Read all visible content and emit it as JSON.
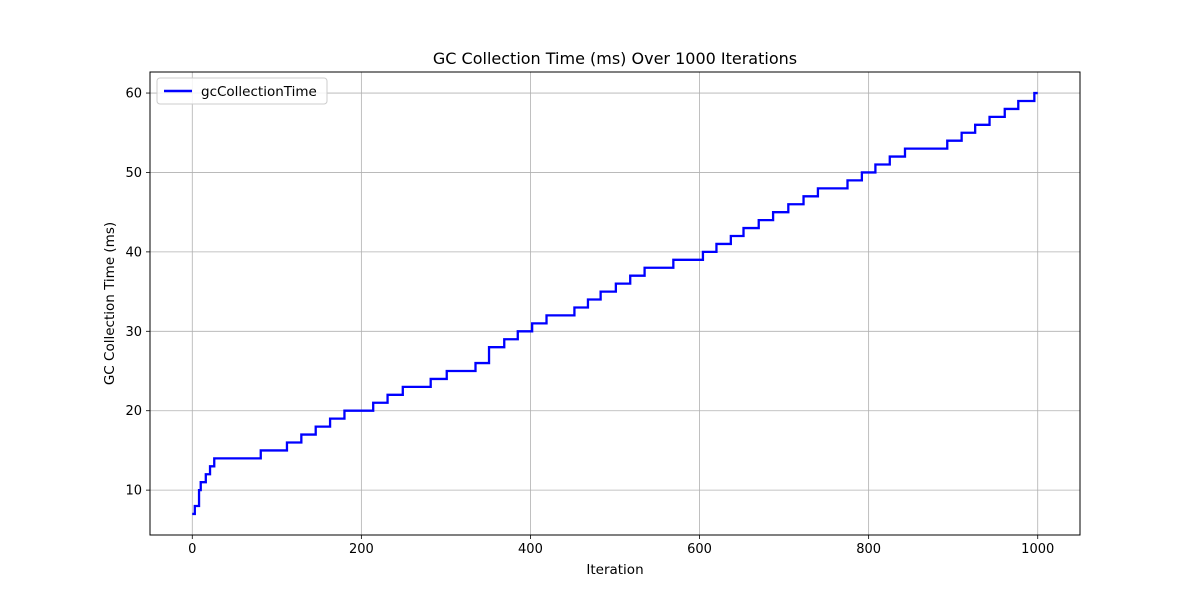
{
  "chart_data": {
    "type": "line",
    "title": "GC Collection Time (ms) Over 1000 Iterations",
    "xlabel": "Iteration",
    "ylabel": "GC Collection Time (ms)",
    "xlim": [
      -50,
      1050
    ],
    "ylim": [
      4.35,
      62.65
    ],
    "xticks": [
      0,
      200,
      400,
      600,
      800,
      1000
    ],
    "yticks": [
      10,
      20,
      30,
      40,
      50,
      60
    ],
    "grid": true,
    "legend": {
      "placement": "upper-left"
    },
    "series": [
      {
        "name": "gcCollectionTime",
        "color": "#0000ff",
        "x": [
          0,
          3,
          3,
          8,
          8,
          10,
          10,
          16,
          16,
          21,
          21,
          26,
          26,
          36,
          36,
          41,
          41,
          51,
          51,
          81,
          81,
          112,
          112,
          129,
          129,
          146,
          146,
          163,
          163,
          180,
          180,
          214,
          214,
          231,
          231,
          249,
          249,
          282,
          282,
          301,
          301,
          335,
          335,
          351,
          351,
          369,
          369,
          385,
          385,
          402,
          402,
          419,
          419,
          452,
          452,
          468,
          468,
          483,
          483,
          501,
          501,
          518,
          518,
          535,
          535,
          569,
          569,
          604,
          604,
          620,
          620,
          637,
          637,
          652,
          652,
          670,
          670,
          687,
          687,
          705,
          705,
          723,
          723,
          740,
          740,
          775,
          775,
          792,
          792,
          808,
          808,
          825,
          825,
          843,
          843,
          893,
          893,
          910,
          910,
          926,
          926,
          943,
          943,
          961,
          961,
          977,
          977,
          996,
          996,
          1000
        ],
        "y": [
          7,
          7,
          8,
          8,
          10,
          10,
          11,
          11,
          12,
          12,
          13,
          13,
          14,
          14,
          14,
          14,
          14,
          14,
          14,
          14,
          15,
          15,
          16,
          16,
          17,
          17,
          18,
          18,
          19,
          19,
          20,
          20,
          21,
          21,
          22,
          22,
          23,
          23,
          24,
          24,
          25,
          25,
          26,
          26,
          28,
          28,
          29,
          29,
          30,
          30,
          31,
          31,
          32,
          32,
          33,
          33,
          34,
          34,
          35,
          35,
          36,
          36,
          37,
          37,
          38,
          38,
          39,
          39,
          40,
          40,
          41,
          41,
          42,
          42,
          43,
          43,
          44,
          44,
          45,
          45,
          46,
          46,
          47,
          47,
          48,
          48,
          49,
          49,
          50,
          50,
          51,
          51,
          52,
          52,
          53,
          53,
          54,
          54,
          55,
          55,
          56,
          56,
          57,
          57,
          58,
          58,
          59,
          59,
          60,
          60
        ]
      }
    ]
  },
  "colors": {
    "grid": "#b0b0b0",
    "axis": "#000000",
    "legend_border": "#cccccc"
  }
}
